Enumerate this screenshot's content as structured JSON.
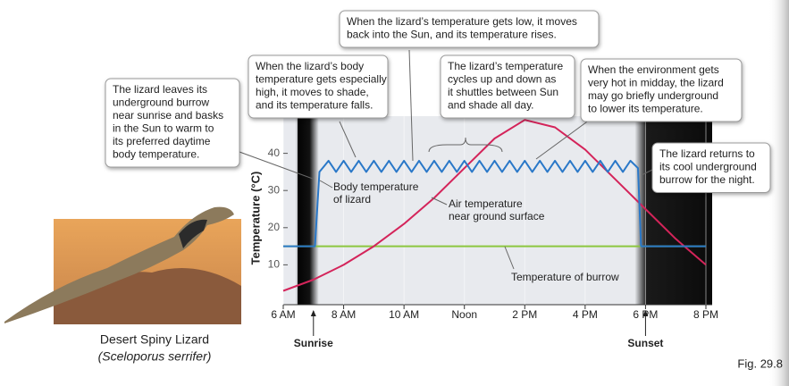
{
  "chart_data": {
    "type": "line",
    "y_label": "Temperature (°C)",
    "xlim": [
      6,
      20
    ],
    "ylim": [
      0,
      50
    ],
    "xticks": [
      {
        "value": 6,
        "label": "6 AM"
      },
      {
        "value": 8,
        "label": "8 AM"
      },
      {
        "value": 10,
        "label": "10 AM"
      },
      {
        "value": 12,
        "label": "Noon"
      },
      {
        "value": 14,
        "label": "2 PM"
      },
      {
        "value": 16,
        "label": "4 PM"
      },
      {
        "value": 18,
        "label": "6 PM"
      },
      {
        "value": 20,
        "label": "8 PM"
      }
    ],
    "yticks": [
      10,
      20,
      30,
      40
    ],
    "grid": true,
    "sunrise": 7,
    "sunset": 18,
    "sunrise_label": "Sunrise",
    "sunset_label": "Sunset",
    "series": [
      {
        "name": [
          "Body temperature",
          "of lizard"
        ],
        "color": "#2a78c8",
        "x": [
          6,
          7.05,
          7.2,
          7.4,
          7.5,
          7.75,
          8,
          8.25,
          8.5,
          8.75,
          9,
          9.25,
          9.5,
          9.75,
          10,
          10.25,
          10.5,
          10.75,
          11,
          11.25,
          11.5,
          11.75,
          12,
          12.25,
          12.5,
          12.75,
          13,
          13.25,
          13.5,
          13.75,
          14,
          14.25,
          14.5,
          14.75,
          15,
          15.25,
          15.5,
          15.75,
          16,
          16.25,
          16.5,
          16.75,
          17,
          17.25,
          17.5,
          17.75,
          17.85,
          20
        ],
        "values": [
          15,
          15,
          35,
          37,
          38,
          35,
          38,
          35,
          38,
          35,
          38,
          35,
          38,
          35,
          38,
          35,
          38,
          35,
          38,
          35,
          38,
          35,
          38,
          35,
          38,
          35,
          38,
          35,
          38,
          35,
          38,
          35,
          38,
          35,
          38,
          35,
          38,
          35,
          38,
          35,
          38,
          35,
          38,
          35,
          38,
          36,
          15,
          15
        ]
      },
      {
        "name": [
          "Air temperature",
          "near ground surface"
        ],
        "color": "#d4245a",
        "x": [
          6,
          7,
          8,
          9,
          10,
          11,
          12,
          13,
          14,
          15,
          16,
          17,
          18,
          19,
          20
        ],
        "values": [
          3,
          6,
          10,
          15,
          21,
          28,
          36,
          44,
          49,
          47,
          41,
          33,
          25,
          17,
          10
        ]
      },
      {
        "name": [
          "Temperature of burrow"
        ],
        "color": "#8cc63f",
        "x": [
          6,
          20
        ],
        "values": [
          15,
          15
        ]
      }
    ],
    "annotations": [
      [
        "The lizard leaves its",
        "underground burrow",
        "near sunrise and basks",
        "in the Sun to warm to",
        "its preferred daytime",
        "body temperature."
      ],
      [
        "When the lizard’s body",
        "temperature gets especially",
        "high, it moves to shade,",
        "and its temperature falls."
      ],
      [
        "When the lizard’s temperature gets low, it moves",
        "back into the Sun, and its temperature rises."
      ],
      [
        "The lizard’s temperature",
        "cycles up and down as",
        "it shuttles between Sun",
        "and shade all day."
      ],
      [
        "When the environment gets",
        "very hot in midday, the lizard",
        "may go briefly underground",
        "to lower its temperature."
      ],
      [
        "The lizard returns to",
        "its cool underground",
        "burrow for the night."
      ]
    ],
    "photo_caption": [
      "Desert Spiny Lizard",
      "(Sceloporus serrifer)"
    ],
    "figure_label": "Fig. 29.8"
  }
}
